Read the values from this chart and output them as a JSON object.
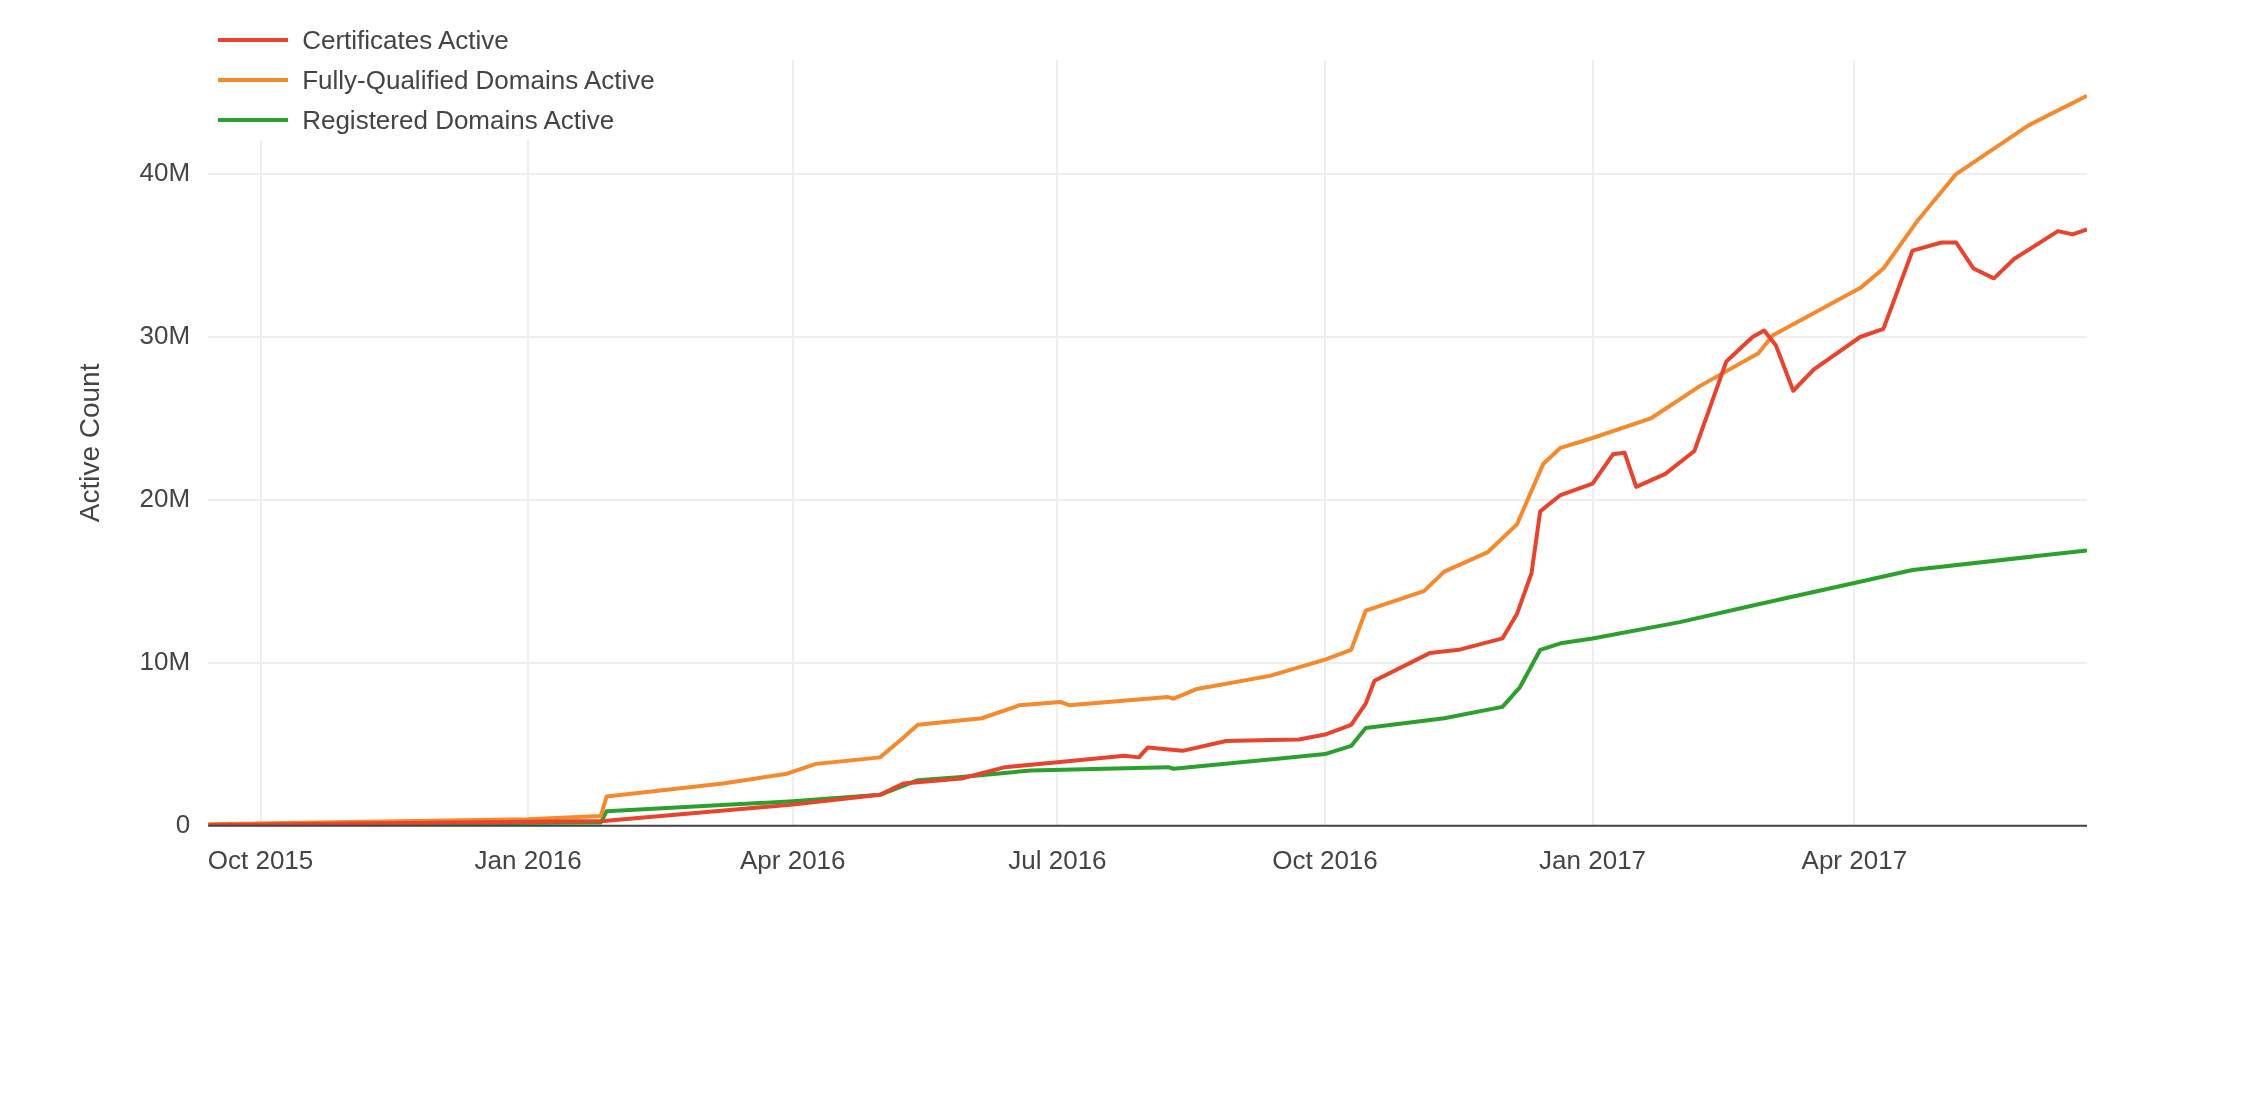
{
  "chart_data": {
    "type": "line",
    "ylabel": "Active Count",
    "xlim": [
      "2015-09-13",
      "2017-06-20"
    ],
    "ylim": [
      0,
      47000000
    ],
    "xticks": [
      {
        "value": "2015-10-01",
        "label": "Oct 2015"
      },
      {
        "value": "2016-01-01",
        "label": "Jan 2016"
      },
      {
        "value": "2016-04-01",
        "label": "Apr 2016"
      },
      {
        "value": "2016-07-01",
        "label": "Jul 2016"
      },
      {
        "value": "2016-10-01",
        "label": "Oct 2016"
      },
      {
        "value": "2017-01-01",
        "label": "Jan 2017"
      },
      {
        "value": "2017-04-01",
        "label": "Apr 2017"
      }
    ],
    "yticks": [
      0,
      {
        "value": 10000000,
        "label": "10M"
      },
      {
        "value": 20000000,
        "label": "20M"
      },
      {
        "value": 30000000,
        "label": "30M"
      },
      {
        "value": 40000000,
        "label": "40M"
      }
    ],
    "grid": true,
    "legend": "top left",
    "marker": "none",
    "line_style": "solid",
    "series": [
      {
        "name": "Certificates Active",
        "color": "#e8432d",
        "x": [
          "2015-09-13",
          "2016-01-27",
          "2016-04-01",
          "2016-05-01",
          "2016-05-09",
          "2016-05-29",
          "2016-06-13",
          "2016-07-01",
          "2016-07-24",
          "2016-07-29",
          "2016-08-01",
          "2016-08-13",
          "2016-08-28",
          "2016-09-22",
          "2016-10-01",
          "2016-10-10",
          "2016-10-15",
          "2016-10-18",
          "2016-11-06",
          "2016-11-16",
          "2016-12-01",
          "2016-12-06",
          "2016-12-11",
          "2016-12-14",
          "2016-12-21",
          "2017-01-01",
          "2017-01-08",
          "2017-01-12",
          "2017-01-16",
          "2017-01-26",
          "2017-02-05",
          "2017-02-10",
          "2017-02-16",
          "2017-02-25",
          "2017-03-01",
          "2017-03-05",
          "2017-03-11",
          "2017-03-18",
          "2017-04-03",
          "2017-04-11",
          "2017-04-21",
          "2017-05-01",
          "2017-05-06",
          "2017-05-12",
          "2017-05-19",
          "2017-05-26",
          "2017-06-10",
          "2017-06-15",
          "2017-06-20"
        ],
        "values": [
          50000,
          300000,
          1300000,
          1900000,
          2600000,
          2900000,
          3600000,
          3900000,
          4300000,
          4200000,
          4800000,
          4600000,
          5200000,
          5300000,
          5600000,
          6200000,
          7500000,
          8900000,
          10600000,
          10800000,
          11500000,
          13000000,
          15500000,
          19300000,
          20300000,
          21000000,
          22800000,
          22900000,
          20800000,
          21600000,
          23000000,
          25500000,
          28500000,
          30000000,
          30400000,
          29500000,
          26700000,
          28000000,
          30000000,
          30500000,
          35300000,
          35800000,
          35800000,
          34200000,
          33600000,
          34800000,
          36500000,
          36300000,
          36600000
        ]
      },
      {
        "name": "Fully-Qualified Domains Active",
        "color": "#f5892c",
        "x": [
          "2015-09-13",
          "2016-01-01",
          "2016-01-26",
          "2016-01-28",
          "2016-03-08",
          "2016-03-30",
          "2016-04-09",
          "2016-05-01",
          "2016-05-09",
          "2016-05-14",
          "2016-06-05",
          "2016-06-18",
          "2016-07-02",
          "2016-07-05",
          "2016-08-08",
          "2016-08-10",
          "2016-08-18",
          "2016-09-12",
          "2016-10-01",
          "2016-10-10",
          "2016-10-15",
          "2016-11-04",
          "2016-11-11",
          "2016-11-26",
          "2016-12-06",
          "2016-12-15",
          "2016-12-21",
          "2017-01-01",
          "2017-01-21",
          "2017-02-07",
          "2017-02-27",
          "2017-03-04",
          "2017-04-03",
          "2017-04-11",
          "2017-04-23",
          "2017-05-06",
          "2017-05-31",
          "2017-06-20"
        ],
        "values": [
          100000,
          400000,
          600000,
          1800000,
          2600000,
          3200000,
          3800000,
          4200000,
          5400000,
          6200000,
          6600000,
          7400000,
          7600000,
          7400000,
          7900000,
          7800000,
          8400000,
          9200000,
          10200000,
          10800000,
          13200000,
          14400000,
          15600000,
          16800000,
          18500000,
          22200000,
          23200000,
          23800000,
          25000000,
          27000000,
          29000000,
          30100000,
          33000000,
          34200000,
          37200000,
          40000000,
          43000000,
          44800000
        ]
      },
      {
        "name": "Registered Domains Active",
        "color": "#2ca02c",
        "x": [
          "2015-09-13",
          "2016-01-26",
          "2016-01-28",
          "2016-04-01",
          "2016-05-01",
          "2016-05-14",
          "2016-05-29",
          "2016-06-22",
          "2016-08-08",
          "2016-08-10",
          "2016-10-01",
          "2016-10-10",
          "2016-10-15",
          "2016-11-11",
          "2016-12-01",
          "2016-12-07",
          "2016-12-14",
          "2016-12-21",
          "2017-01-01",
          "2017-01-31",
          "2017-02-27",
          "2017-04-01",
          "2017-04-21",
          "2017-06-20"
        ],
        "values": [
          50000,
          200000,
          900000,
          1500000,
          1900000,
          2800000,
          3000000,
          3400000,
          3600000,
          3500000,
          4400000,
          4900000,
          6000000,
          6600000,
          7300000,
          8500000,
          10800000,
          11200000,
          11500000,
          12500000,
          13600000,
          14900000,
          15700000,
          16900000
        ]
      }
    ]
  }
}
